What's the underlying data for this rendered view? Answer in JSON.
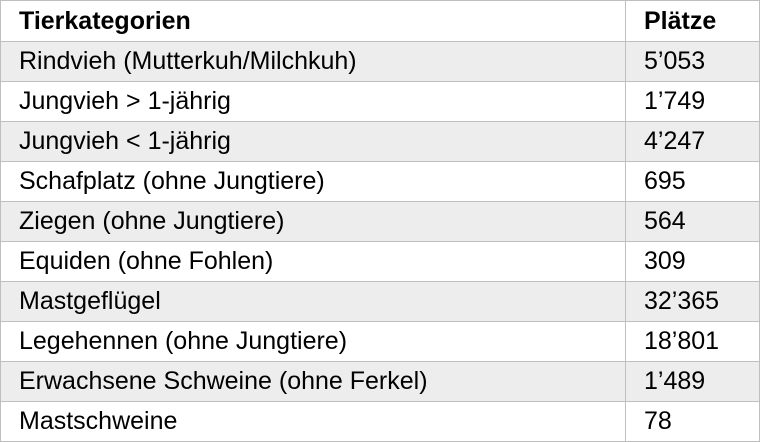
{
  "table": {
    "headers": [
      "Tierkategorien",
      "Plätze"
    ],
    "rows": [
      [
        "Rindvieh (Mutterkuh/Milchkuh)",
        "5’053"
      ],
      [
        "Jungvieh > 1-jährig",
        "1’749"
      ],
      [
        "Jungvieh < 1-jährig",
        "4’247"
      ],
      [
        "Schafplatz (ohne Jungtiere)",
        "695"
      ],
      [
        "Ziegen (ohne Jungtiere)",
        "564"
      ],
      [
        "Equiden (ohne Fohlen)",
        "309"
      ],
      [
        "Mastgeflügel",
        "32’365"
      ],
      [
        "Legehennen (ohne Jungtiere)",
        "18’801"
      ],
      [
        "Erwachsene Schweine (ohne Ferkel)",
        "1’489"
      ],
      [
        "Mastschweine",
        "78"
      ]
    ]
  }
}
